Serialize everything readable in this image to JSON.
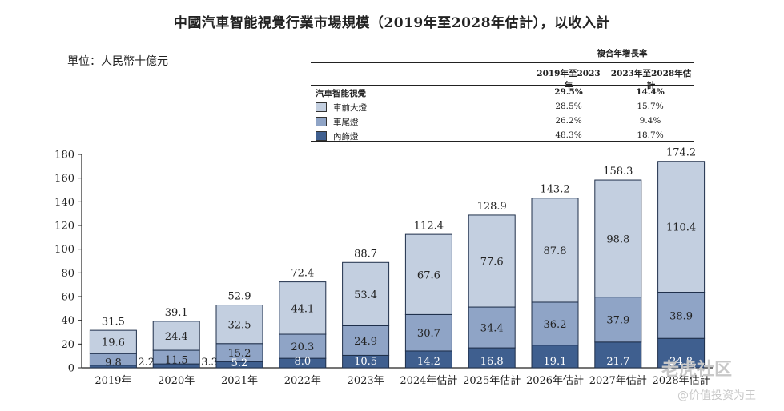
{
  "title": "中國汽車智能視覺行業市場規模（2019年至2028年估計），以收入計",
  "unit_label": "單位：人民幣十億元",
  "cagr_table": {
    "header": "複合年增長率",
    "col1": "2019年至2023年",
    "col2": "2023年至2028年估計",
    "rows": [
      {
        "name": "汽車智能視覺",
        "v1": "29.5%",
        "v2": "14.4%"
      },
      {
        "name": "車前大燈",
        "v1": "28.5%",
        "v2": "15.7%"
      },
      {
        "name": "車尾燈",
        "v1": "26.2%",
        "v2": "9.4%"
      },
      {
        "name": "內飾燈",
        "v1": "48.3%",
        "v2": "18.7%"
      }
    ]
  },
  "watermark": {
    "brand": "老虎社区",
    "account": "@价值投资为王"
  },
  "colors": {
    "front": "#c3cfe0",
    "rear": "#8fa4c6",
    "interior": "#3f5f8f",
    "axis": "#222222"
  },
  "chart_data": {
    "type": "bar",
    "stacked": true,
    "categories": [
      "2019年",
      "2020年",
      "2021年",
      "2022年",
      "2023年",
      "2024年估計",
      "2025年估計",
      "2026年估計",
      "2027年估計",
      "2028年估計"
    ],
    "series": [
      {
        "name": "內飾燈",
        "values": [
          2.2,
          3.3,
          5.2,
          8.0,
          10.5,
          14.2,
          16.8,
          19.1,
          21.7,
          24.8
        ]
      },
      {
        "name": "車尾燈",
        "values": [
          9.8,
          11.5,
          15.2,
          20.3,
          24.9,
          30.7,
          34.4,
          36.2,
          37.9,
          38.9
        ]
      },
      {
        "name": "車前大燈",
        "values": [
          19.6,
          24.4,
          32.5,
          44.1,
          53.4,
          67.6,
          77.6,
          87.8,
          98.8,
          110.4
        ]
      }
    ],
    "totals": [
      31.5,
      39.1,
      52.9,
      72.4,
      88.7,
      112.4,
      128.9,
      143.2,
      158.3,
      174.2
    ],
    "value_labels": {
      "interior": [
        "2.2",
        "3.3",
        "5.2",
        "8.0",
        "10.5",
        "14.2",
        "16.8",
        "19.1",
        "21.7",
        "24.8"
      ],
      "rear": [
        "9.8",
        "11.5",
        "15.2",
        "20.3",
        "24.9",
        "30.7",
        "34.4",
        "36.2",
        "37.9",
        "38.9"
      ],
      "front": [
        "19.6",
        "24.4",
        "32.5",
        "44.1",
        "53.4",
        "67.6",
        "77.6",
        "87.8",
        "98.8",
        "110.4"
      ],
      "totals": [
        "31.5",
        "39.1",
        "52.9",
        "72.4",
        "88.7",
        "112.4",
        "128.9",
        "143.2",
        "158.3",
        "174.2"
      ]
    },
    "y_ticks": [
      "0",
      "20",
      "40",
      "60",
      "80",
      "100",
      "120",
      "140",
      "160",
      "180"
    ],
    "ylim": [
      0,
      180
    ],
    "grid": false,
    "legend": "top-right"
  }
}
